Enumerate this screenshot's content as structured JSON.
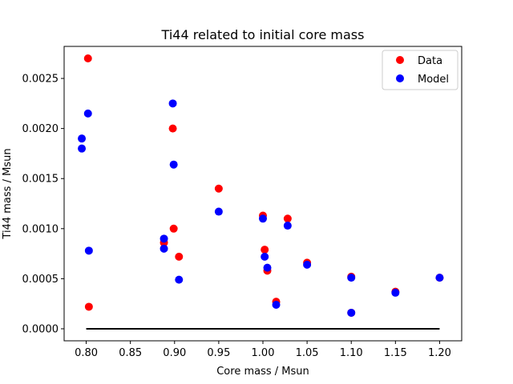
{
  "chart_data": {
    "type": "scatter",
    "title": "Ti44 related to initial core mass",
    "xlabel": "Core mass / Msun",
    "ylabel": "Ti44 mass / Msun",
    "xlim": [
      0.775,
      1.225
    ],
    "ylim": [
      -0.00012,
      0.00282
    ],
    "xticks": [
      0.8,
      0.85,
      0.9,
      0.95,
      1.0,
      1.05,
      1.1,
      1.15,
      1.2
    ],
    "xtick_labels": [
      "0.80",
      "0.85",
      "0.90",
      "0.95",
      "1.00",
      "1.05",
      "1.10",
      "1.15",
      "1.20"
    ],
    "yticks": [
      0.0,
      0.0005,
      0.001,
      0.0015,
      0.002,
      0.0025
    ],
    "ytick_labels": [
      "0.0000",
      "0.0005",
      "0.0010",
      "0.0015",
      "0.0020",
      "0.0025"
    ],
    "grid": false,
    "legend_position": "top-right",
    "series": [
      {
        "name": "Data",
        "color": "#ff0000",
        "x": [
          0.802,
          0.803,
          0.888,
          0.898,
          0.899,
          0.905,
          0.95,
          1.0,
          1.002,
          1.005,
          1.015,
          1.028,
          1.05,
          1.1,
          1.1,
          1.15,
          1.2
        ],
        "y": [
          0.0027,
          0.00022,
          0.00086,
          0.002,
          0.001,
          0.00072,
          0.0014,
          0.00113,
          0.00079,
          0.00058,
          0.00027,
          0.0011,
          0.00066,
          0.00052,
          0.00016,
          0.00037,
          0.00051
        ]
      },
      {
        "name": "Model",
        "color": "#0000ff",
        "x": [
          0.795,
          0.795,
          0.802,
          0.803,
          0.888,
          0.888,
          0.898,
          0.899,
          0.905,
          0.95,
          1.0,
          1.002,
          1.005,
          1.015,
          1.028,
          1.05,
          1.1,
          1.1,
          1.15,
          1.2
        ],
        "y": [
          0.0019,
          0.0018,
          0.00215,
          0.00078,
          0.0009,
          0.0008,
          0.00225,
          0.00164,
          0.00049,
          0.00117,
          0.0011,
          0.00072,
          0.00061,
          0.00024,
          0.00103,
          0.00064,
          0.00051,
          0.00016,
          0.00036,
          0.00051
        ]
      }
    ],
    "lines": [
      {
        "color": "#000000",
        "x": [
          0.8,
          1.2
        ],
        "y": [
          0.0,
          0.0
        ]
      }
    ]
  }
}
